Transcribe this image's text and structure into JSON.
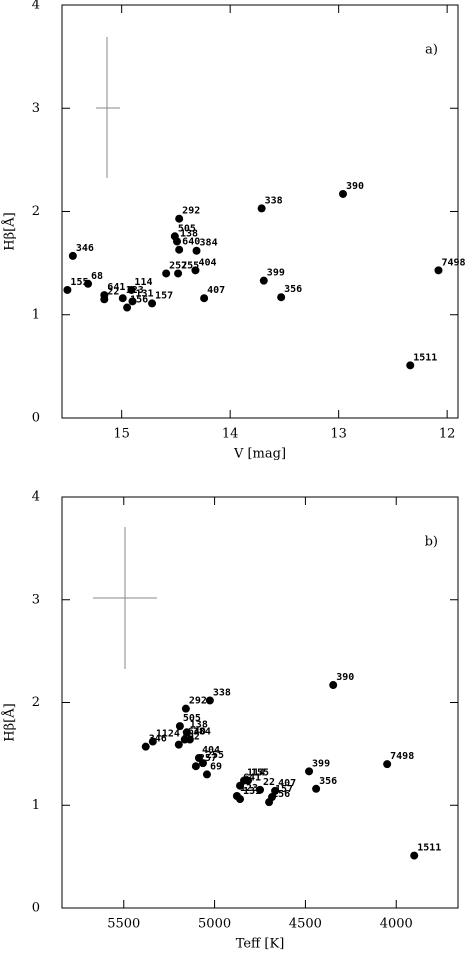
{
  "chart_data": [
    {
      "type": "scatter",
      "panel_label": "a)",
      "x_label": "V [mag]",
      "y_label": "Hβ[Å]",
      "xlim": [
        15.55,
        11.9
      ],
      "ylim": [
        0,
        4
      ],
      "xticks": [
        15,
        14,
        13,
        12
      ],
      "yticks": [
        0,
        1,
        2,
        3,
        4
      ],
      "color": "#000000",
      "labels": [
        "346",
        "155",
        "68",
        "641",
        "22",
        "114",
        "123",
        "156",
        "131",
        "157",
        "257",
        "255",
        "404",
        "407",
        "292",
        "505",
        "138",
        "640",
        "384",
        "338",
        "390",
        "399",
        "356",
        "7498",
        "1511"
      ],
      "x": [
        15.45,
        15.5,
        15.31,
        15.16,
        15.16,
        14.91,
        14.99,
        14.95,
        14.9,
        14.72,
        14.59,
        14.48,
        14.32,
        14.24,
        14.47,
        14.51,
        14.49,
        14.47,
        14.31,
        13.71,
        12.96,
        13.69,
        13.53,
        12.08,
        12.34
      ],
      "values": [
        1.57,
        1.24,
        1.3,
        1.19,
        1.15,
        1.24,
        1.16,
        1.07,
        1.13,
        1.11,
        1.4,
        1.4,
        1.43,
        1.16,
        1.93,
        1.76,
        1.71,
        1.63,
        1.62,
        2.03,
        2.17,
        1.33,
        1.17,
        1.43,
        0.51
      ]
    },
    {
      "type": "scatter",
      "panel_label": "b)",
      "x_label": "Teff [K]",
      "y_label": "Hβ[Å]",
      "xlim": [
        5840,
        3660
      ],
      "ylim": [
        0,
        4
      ],
      "xticks": [
        5500,
        5000,
        4500,
        4000
      ],
      "yticks": [
        0,
        1,
        2,
        3,
        4
      ],
      "color": "#000000",
      "labels": [
        "346",
        "1124",
        "292",
        "338",
        "505",
        "138",
        "640",
        "384",
        "402",
        "404",
        "255",
        "257",
        "69",
        "390",
        "399",
        "356",
        "7498",
        "1511",
        "114",
        "155",
        "641",
        "22",
        "407",
        "157",
        "123",
        "131",
        "156"
      ],
      "x": [
        5379,
        5340,
        5158,
        5026,
        5191,
        5153,
        5164,
        5136,
        5197,
        5086,
        5064,
        5103,
        5042,
        4347,
        4480,
        4441,
        4050,
        3901,
        4838,
        4816,
        4860,
        4750,
        4667,
        4684,
        4877,
        4860,
        4700
      ],
      "values": [
        1.57,
        1.62,
        1.94,
        2.02,
        1.77,
        1.71,
        1.64,
        1.64,
        1.59,
        1.46,
        1.41,
        1.38,
        1.3,
        2.17,
        1.33,
        1.16,
        1.4,
        0.51,
        1.24,
        1.24,
        1.19,
        1.15,
        1.14,
        1.08,
        1.09,
        1.06,
        1.03
      ]
    }
  ]
}
